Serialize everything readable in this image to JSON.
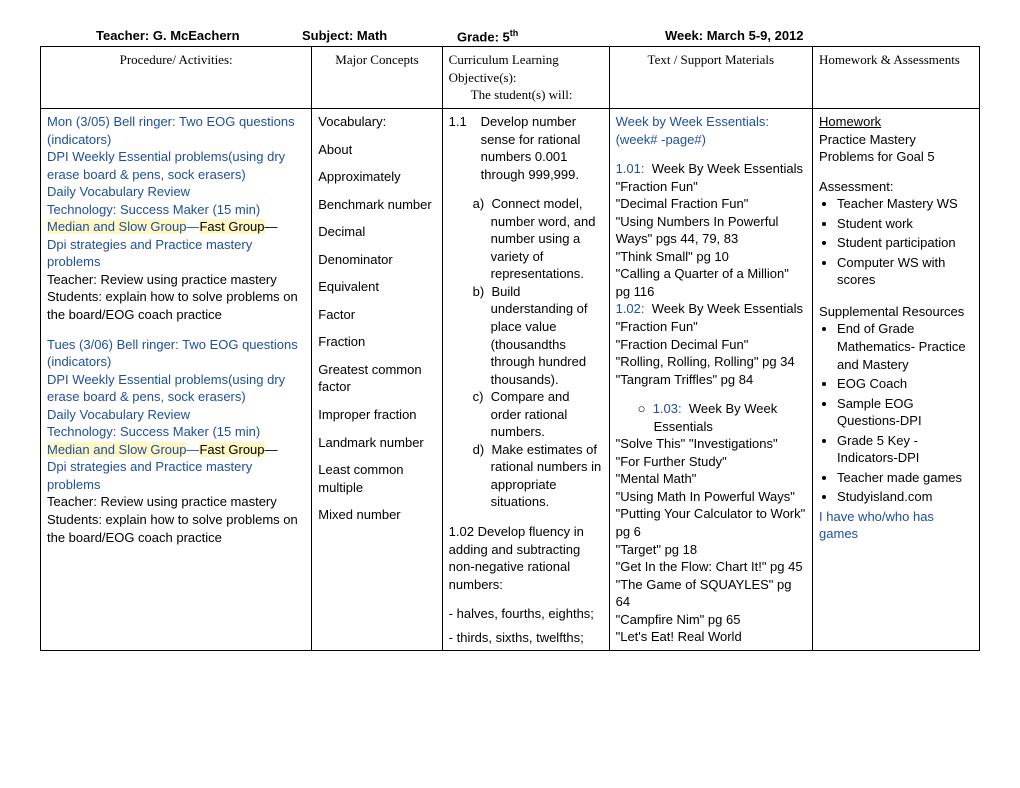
{
  "header": {
    "teacher_label": "Teacher:",
    "teacher_value": "G. McEachern",
    "subject_label": "Subject:",
    "subject_value": "Math",
    "grade_label": "Grade:",
    "grade_value": "5",
    "grade_sup": "th",
    "week_label": "Week:",
    "week_value": "March 5-9, 2012"
  },
  "columns": {
    "c0": "Procedure/ Activities:",
    "c1": "Major Concepts",
    "c2a": "Curriculum Learning Objective(s):",
    "c2b": "The student(s) will:",
    "c3": "Text / Support Materials",
    "c4": "Homework & Assessments"
  },
  "procedures": {
    "mon_title": "Mon (3/05) Bell ringer: Two EOG questions (indicators)",
    "dpi": "DPI Weekly Essential problems(using dry erase board & pens, sock erasers)",
    "vocab": "Daily Vocabulary Review",
    "tech": "Technology: Success Maker (15 min)",
    "groups_a": "Median and Slow Group",
    "groups_dash": "—",
    "groups_b": "Fast Group",
    "strat": "Dpi strategies and Practice mastery problems",
    "teacher_line": "Teacher:  Review using practice mastery",
    "students_line": "Students:  explain how to solve problems on the board/EOG coach practice",
    "tues_title": "Tues (3/06) Bell ringer: Two EOG questions (indicators)"
  },
  "vocab": {
    "head": "Vocabulary:",
    "items": [
      "About",
      "Approximately",
      "Benchmark number",
      "Decimal",
      "Denominator",
      "Equivalent",
      "Factor",
      "Fraction",
      "Greatest common factor",
      "Improper fraction",
      "Landmark number",
      "Least common multiple",
      "Mixed number"
    ]
  },
  "objectives": {
    "o1_num": "1.1",
    "o1_text": "Develop number sense for rational numbers 0.001 through 999,999.",
    "a_lbl": "a)",
    "a_text": "Connect model, number word, and number using a variety of representations.",
    "b_lbl": "b)",
    "b_text": "Build understanding of place value (thousandths through hundred thousands).",
    "c_lbl": "c)",
    "c_text": "Compare and order rational numbers.",
    "d_lbl": "d)",
    "d_text": "Make estimates of rational numbers in appropriate situations.",
    "o2_head": "1.02 Develop fluency in adding and subtracting non-negative rational numbers:",
    "o2_l1": "- halves, fourths, eighths;",
    "o2_l2": "- thirds, sixths, twelfths;"
  },
  "materials": {
    "head1": "Week by Week Essentials:",
    "head2": "(week# -page#)",
    "s101_lbl": "1.01:",
    "s101_title": "Week By Week Essentials",
    "s101_lines": [
      "\"Fraction Fun\"",
      "\"Decimal Fraction Fun\"",
      "\"Using Numbers In Powerful Ways\" pgs 44,   79, 83",
      "\"Think Small\" pg 10",
      "\"Calling a Quarter of a Million\" pg 116"
    ],
    "s102_lbl": "1.02:",
    "s102_title": "Week By Week Essentials",
    "s102_lines": [
      "\"Fraction Fun\"",
      "\"Fraction Decimal Fun\"",
      "\"Rolling, Rolling, Rolling\" pg 34",
      "\"Tangram Triffles\" pg 84"
    ],
    "s103_bullet": "○",
    "s103_lbl": "1.03:",
    "s103_title": "Week By Week Essentials",
    "s103_lines": [
      "\"Solve This\"   \"Investigations\"",
      "\"For Further Study\"",
      "\"Mental Math\"",
      "\"Using Math In Powerful Ways\"",
      "\"Putting Your Calculator to Work\" pg 6",
      "\"Target\" pg 18",
      "\"Get In the Flow: Chart It!\" pg 45",
      "\"The Game of SQUAYLES\" pg 64",
      "\"Campfire Nim\" pg 65",
      "\"Let's Eat! Real World"
    ]
  },
  "homework": {
    "hw_head": "Homework",
    "hw_l1": "Practice Mastery Problems for Goal 5",
    "assess_head": "Assessment:",
    "assess_items": [
      "Teacher Mastery WS",
      "Student work",
      "Student participation",
      "Computer WS with scores"
    ],
    "supp_head": "Supplemental Resources",
    "supp_items": [
      "End of Grade Mathematics- Practice and Mastery",
      "EOG Coach",
      "Sample EOG Questions-DPI",
      "Grade 5 Key -Indicators-DPI",
      "Teacher made games",
      "Studyisland.com"
    ],
    "tail": "I have who/who has games"
  },
  "colors": {
    "link": "#1f4e9c",
    "highlight": "#fff8c5"
  }
}
